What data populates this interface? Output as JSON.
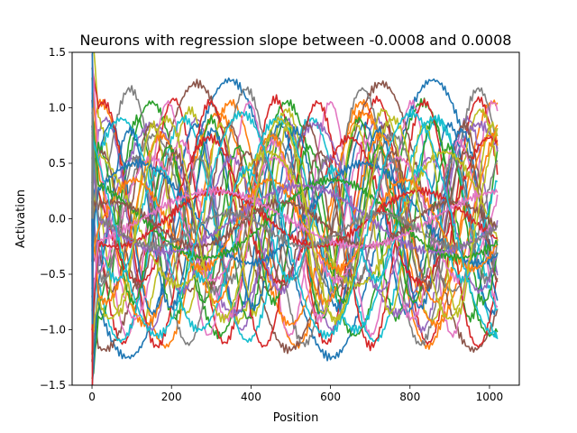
{
  "chart_data": {
    "type": "line",
    "title": "Neurons with regression slope between -0.0008 and 0.0008",
    "xlabel": "Position",
    "ylabel": "Activation",
    "xlim": [
      -50,
      1075
    ],
    "ylim": [
      -1.5,
      1.5
    ],
    "xticks": [
      0,
      200,
      400,
      600,
      800,
      1000
    ],
    "xtick_labels": [
      "0",
      "200",
      "400",
      "600",
      "800",
      "1000"
    ],
    "yticks": [
      -1.5,
      -1.0,
      -0.5,
      0.0,
      0.5,
      1.0,
      1.5
    ],
    "ytick_labels": [
      "−1.5",
      "−1.0",
      "−0.5",
      "0.0",
      "0.5",
      "1.0",
      "1.5"
    ],
    "grid": false,
    "legend": "none",
    "x_range": [
      0,
      1023
    ],
    "colors": [
      "#1f77b4",
      "#ff7f0e",
      "#2ca02c",
      "#d62728",
      "#9467bd",
      "#8c564b",
      "#e377c2",
      "#7f7f7f",
      "#bcbd22",
      "#17becf"
    ],
    "series": [
      {
        "amp": 1.25,
        "cycles": 2.0,
        "phase": 3.6,
        "offset": 0.0
      },
      {
        "amp": 1.1,
        "cycles": 3.1,
        "phase": 1.2,
        "offset": -0.05
      },
      {
        "amp": 1.05,
        "cycles": 3.0,
        "phase": 5.1,
        "offset": 0.0
      },
      {
        "amp": 1.1,
        "cycles": 4.0,
        "phase": 2.8,
        "offset": -0.02
      },
      {
        "amp": 0.95,
        "cycles": 4.5,
        "phase": 0.6,
        "offset": -0.05
      },
      {
        "amp": 1.2,
        "cycles": 2.2,
        "phase": 4.3,
        "offset": 0.02
      },
      {
        "amp": 1.05,
        "cycles": 5.0,
        "phase": 2.0,
        "offset": 0.0
      },
      {
        "amp": 1.15,
        "cycles": 3.5,
        "phase": 5.8,
        "offset": 0.02
      },
      {
        "amp": 0.95,
        "cycles": 4.2,
        "phase": 1.5,
        "offset": 0.03
      },
      {
        "amp": 1.0,
        "cycles": 3.2,
        "phase": 3.3,
        "offset": -0.1
      },
      {
        "amp": 0.85,
        "cycles": 4.8,
        "phase": 0.2,
        "offset": 0.0
      },
      {
        "amp": 0.95,
        "cycles": 2.8,
        "phase": 2.4,
        "offset": 0.0
      },
      {
        "amp": 0.9,
        "cycles": 5.5,
        "phase": 4.0,
        "offset": 0.0
      },
      {
        "amp": 1.1,
        "cycles": 3.8,
        "phase": 0.9,
        "offset": -0.05
      },
      {
        "amp": 0.85,
        "cycles": 2.5,
        "phase": 5.5,
        "offset": 0.0
      },
      {
        "amp": 0.75,
        "cycles": 5.2,
        "phase": 3.1,
        "offset": 0.1
      },
      {
        "amp": 0.8,
        "cycles": 4.4,
        "phase": 1.8,
        "offset": -0.1
      },
      {
        "amp": 0.7,
        "cycles": 3.4,
        "phase": 4.6,
        "offset": 0.05
      },
      {
        "amp": 0.85,
        "cycles": 6.0,
        "phase": 2.2,
        "offset": 0.0
      },
      {
        "amp": 0.95,
        "cycles": 2.6,
        "phase": 0.4,
        "offset": -0.05
      },
      {
        "amp": 0.8,
        "cycles": 4.9,
        "phase": 5.0,
        "offset": 0.0
      },
      {
        "amp": 0.75,
        "cycles": 3.7,
        "phase": 3.9,
        "offset": 0.0
      },
      {
        "amp": 0.7,
        "cycles": 5.8,
        "phase": 1.0,
        "offset": -0.05
      },
      {
        "amp": 0.65,
        "cycles": 2.9,
        "phase": 2.6,
        "offset": 0.08
      },
      {
        "amp": 0.6,
        "cycles": 4.1,
        "phase": 5.3,
        "offset": -0.05
      },
      {
        "amp": 0.6,
        "cycles": 5.6,
        "phase": 0.7,
        "offset": 0.0
      },
      {
        "amp": 0.55,
        "cycles": 3.3,
        "phase": 4.8,
        "offset": 0.0
      },
      {
        "amp": 0.55,
        "cycles": 6.4,
        "phase": 3.5,
        "offset": 0.0
      },
      {
        "amp": 0.6,
        "cycles": 2.3,
        "phase": 1.6,
        "offset": 0.0
      },
      {
        "amp": 0.5,
        "cycles": 4.7,
        "phase": 2.9,
        "offset": -0.05
      },
      {
        "amp": 0.45,
        "cycles": 1.8,
        "phase": 0.3,
        "offset": 0.05
      },
      {
        "amp": 0.4,
        "cycles": 3.0,
        "phase": 5.9,
        "offset": -0.05
      },
      {
        "amp": 0.35,
        "cycles": 1.6,
        "phase": 1.9,
        "offset": 0.0
      },
      {
        "amp": 0.25,
        "cycles": 2.0,
        "phase": 4.0,
        "offset": 0.0
      },
      {
        "amp": 0.3,
        "cycles": 1.5,
        "phase": 3.0,
        "offset": 0.0
      },
      {
        "amp": 0.2,
        "cycles": 2.4,
        "phase": 0.8,
        "offset": -0.05
      },
      {
        "amp": 0.25,
        "cycles": 1.4,
        "phase": 5.2,
        "offset": 0.0
      },
      {
        "amp": 0.15,
        "cycles": 2.7,
        "phase": 2.1,
        "offset": -0.1
      },
      {
        "amp": 0.9,
        "cycles": 3.6,
        "phase": 3.7,
        "offset": 0.0
      },
      {
        "amp": 1.0,
        "cycles": 2.4,
        "phase": 2.3,
        "offset": -0.05
      }
    ]
  }
}
